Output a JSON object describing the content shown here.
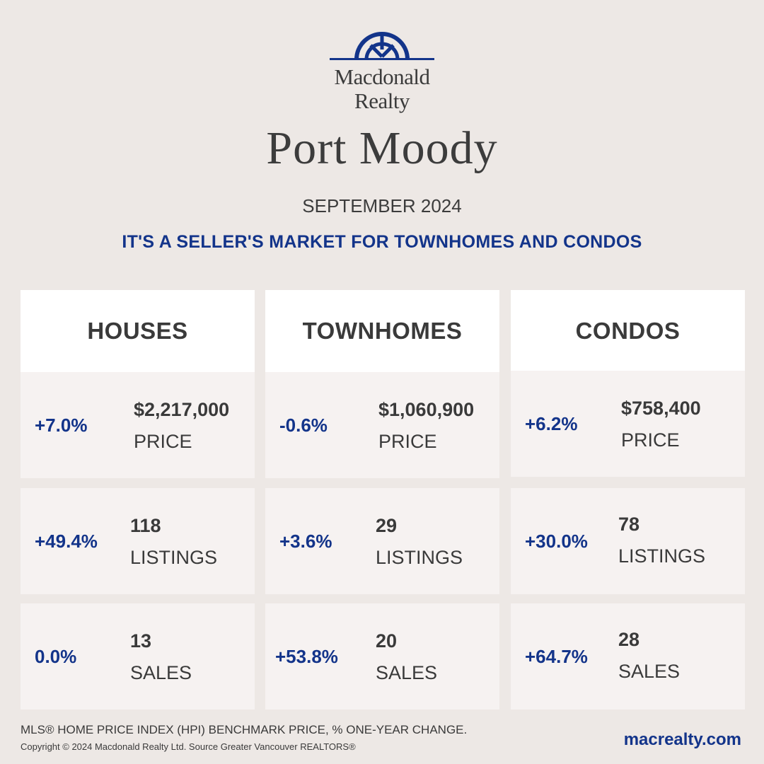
{
  "brand": {
    "name_line1": "Macdonald",
    "name_line2": "Realty",
    "logo_color": "#13348a"
  },
  "header": {
    "city": "Port Moody",
    "date": "SEPTEMBER 2024",
    "headline": "IT'S A SELLER'S MARKET FOR TOWNHOMES AND CONDOS"
  },
  "columns": [
    {
      "title": "HOUSES",
      "stats": [
        {
          "change": "+7.0%",
          "value": "$2,217,000",
          "label": "PRICE"
        },
        {
          "change": "+49.4%",
          "value": "118",
          "label": "LISTINGS"
        },
        {
          "change": "0.0%",
          "value": "13",
          "label": "SALES"
        }
      ]
    },
    {
      "title": "TOWNHOMES",
      "stats": [
        {
          "change": "-0.6%",
          "value": "$1,060,900",
          "label": "PRICE"
        },
        {
          "change": "+3.6%",
          "value": "29",
          "label": "LISTINGS"
        },
        {
          "change": "+53.8%",
          "value": "20",
          "label": "SALES"
        }
      ]
    },
    {
      "title": "CONDOS",
      "stats": [
        {
          "change": "+6.2%",
          "value": "$758,400",
          "label": "PRICE"
        },
        {
          "change": "+30.0%",
          "value": "78",
          "label": "LISTINGS"
        },
        {
          "change": "+64.7%",
          "value": "28",
          "label": "SALES"
        }
      ]
    }
  ],
  "footer": {
    "note": "MLS® HOME PRICE INDEX (HPI) BENCHMARK PRICE, % ONE-YEAR CHANGE.",
    "copyright": "Copyright © 2024 Macdonald Realty Ltd. Source Greater Vancouver REALTORS®",
    "website": "macrealty.com"
  },
  "colors": {
    "background": "#ede8e5",
    "accent": "#13348a",
    "card": "#f6f2f1",
    "header_card": "#ffffff"
  }
}
